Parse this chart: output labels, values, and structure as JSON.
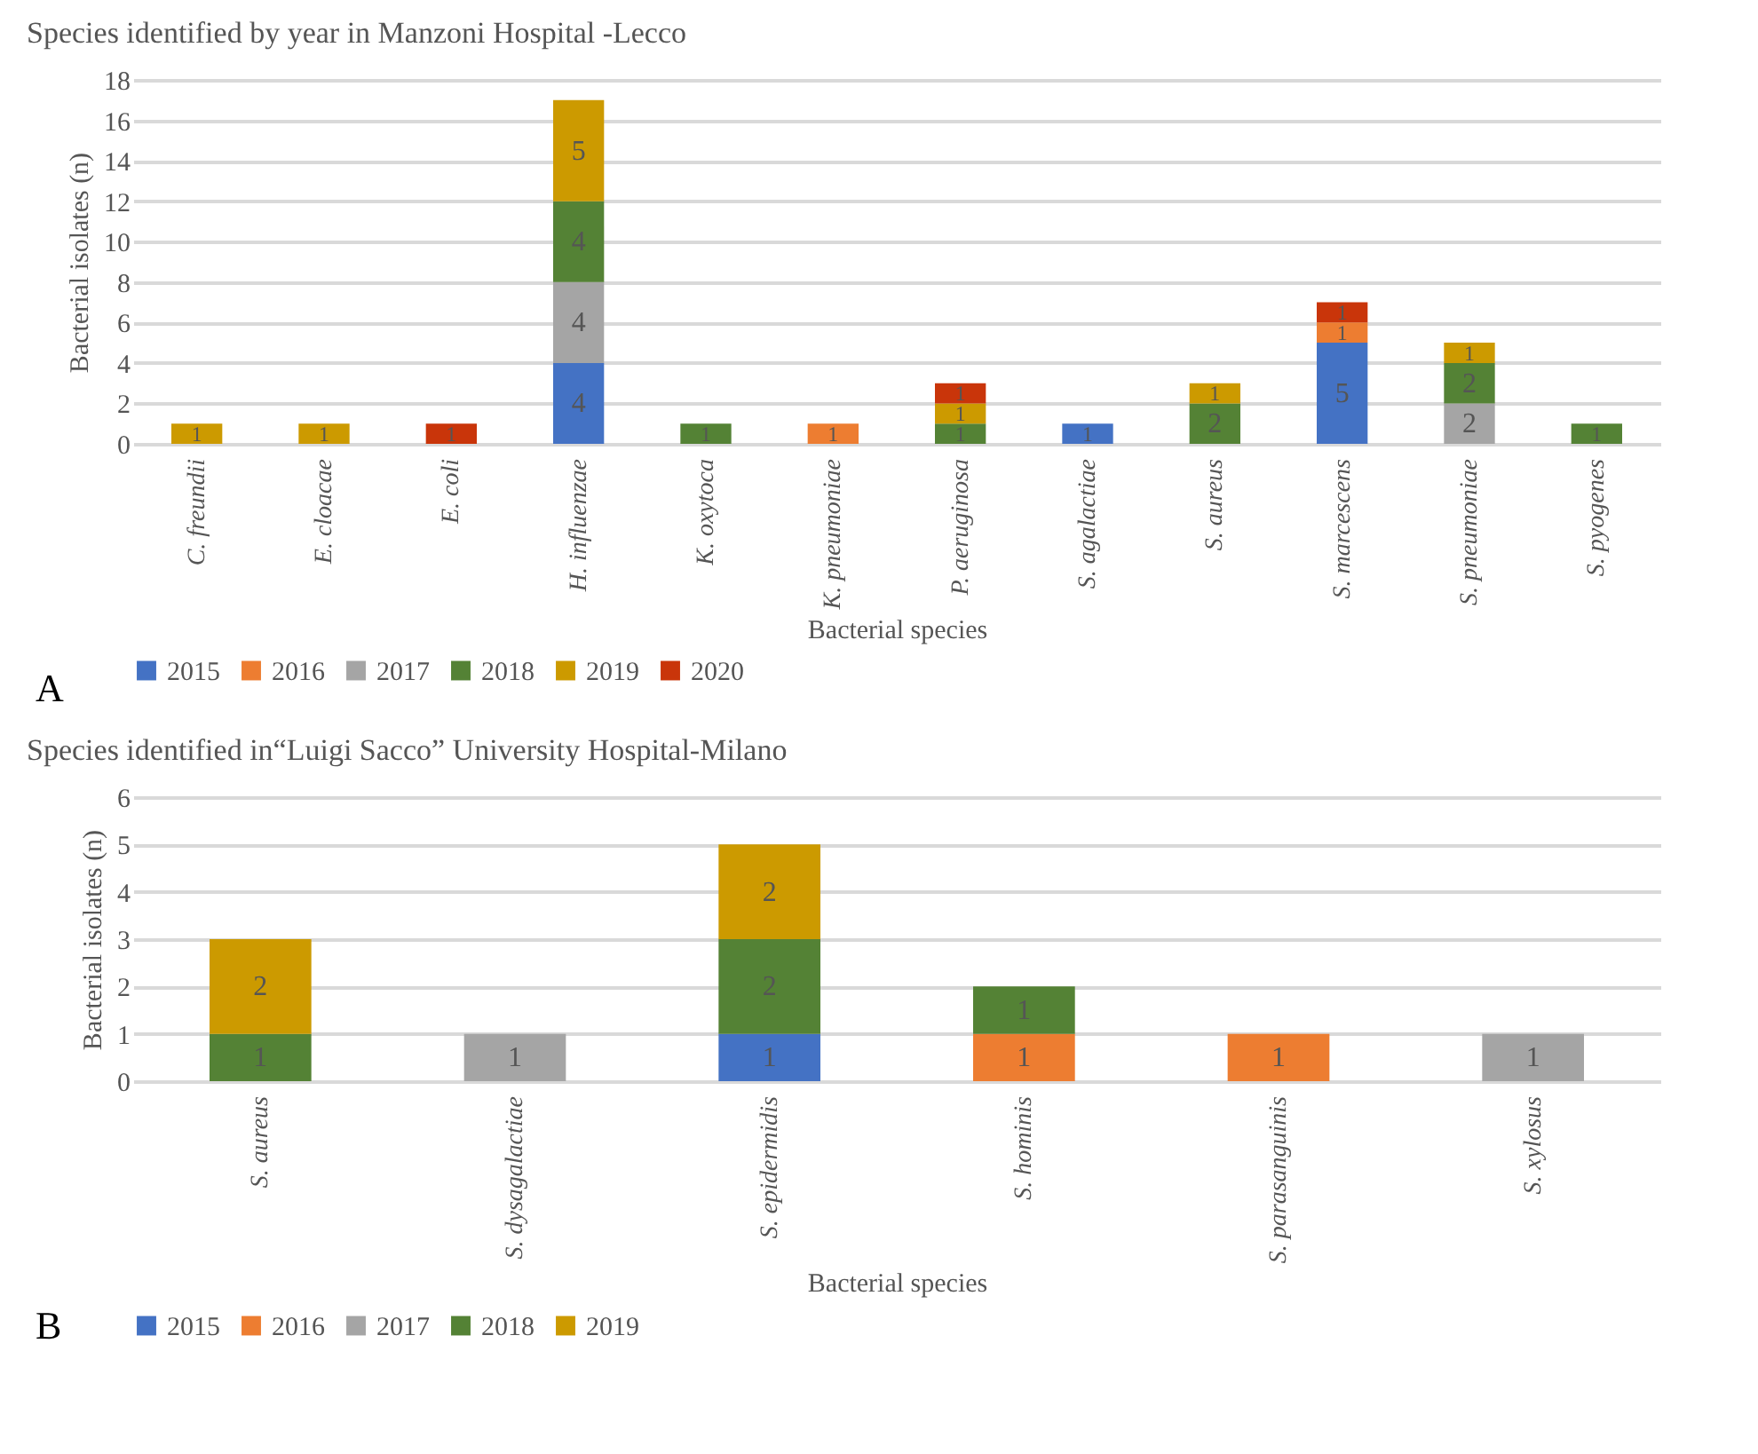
{
  "chart_data": [
    {
      "type": "bar",
      "title": "Species identified by year in Manzoni Hospital -Lecco",
      "xlabel": "Bacterial species",
      "ylabel": "Bacterial isolates (n)",
      "stacked": true,
      "data_labels": true,
      "grid": "y",
      "legend": "bottom",
      "annotations": [
        "A"
      ],
      "categories": [
        "C. freundii",
        "E. cloacae",
        "E. coli",
        "H. influenzae",
        "K. oxytoca",
        "K. pneumoniae",
        "P. aeruginosa",
        "S. agalactiae",
        "S. aureus",
        "S. marcescens",
        "S. pneumoniae",
        "S. pyogenes"
      ],
      "ylim": [
        0,
        18
      ],
      "yticks": [
        0,
        2,
        4,
        6,
        8,
        10,
        12,
        14,
        16,
        18
      ],
      "series": [
        {
          "name": "2015",
          "color": "#4472c4",
          "values": [
            null,
            null,
            null,
            4,
            null,
            null,
            null,
            1,
            null,
            5,
            null,
            null
          ]
        },
        {
          "name": "2016",
          "color": "#ed7d31",
          "values": [
            null,
            null,
            null,
            null,
            null,
            1,
            null,
            null,
            null,
            1,
            null,
            null
          ]
        },
        {
          "name": "2017",
          "color": "#a5a5a5",
          "values": [
            null,
            null,
            null,
            4,
            null,
            null,
            null,
            null,
            null,
            null,
            2,
            null
          ]
        },
        {
          "name": "2018",
          "color": "#548235",
          "values": [
            null,
            null,
            null,
            4,
            1,
            null,
            1,
            null,
            2,
            null,
            2,
            1
          ]
        },
        {
          "name": "2019",
          "color": "#cc9a00",
          "values": [
            1,
            1,
            null,
            5,
            null,
            null,
            1,
            null,
            1,
            null,
            1,
            null
          ]
        },
        {
          "name": "2020",
          "color": "#c9350a",
          "values": [
            null,
            null,
            1,
            null,
            null,
            null,
            1,
            null,
            null,
            1,
            null,
            null
          ]
        }
      ]
    },
    {
      "type": "bar",
      "title": "Species identified in“Luigi Sacco” University Hospital-Milano",
      "xlabel": "Bacterial species",
      "ylabel": "Bacterial isolates (n)",
      "stacked": true,
      "data_labels": true,
      "grid": "y",
      "legend": "bottom",
      "annotations": [
        "B"
      ],
      "categories": [
        "S. aureus",
        "S. dysagalactiae",
        "S. epidermidis",
        "S. hominis",
        "S. parasanguinis",
        "S. xylosus"
      ],
      "ylim": [
        0,
        6
      ],
      "yticks": [
        0,
        1,
        2,
        3,
        4,
        5,
        6
      ],
      "series": [
        {
          "name": "2015",
          "color": "#4472c4",
          "values": [
            null,
            null,
            1,
            null,
            null,
            null
          ]
        },
        {
          "name": "2016",
          "color": "#ed7d31",
          "values": [
            null,
            null,
            null,
            1,
            1,
            null
          ]
        },
        {
          "name": "2017",
          "color": "#a5a5a5",
          "values": [
            null,
            1,
            null,
            null,
            null,
            1
          ]
        },
        {
          "name": "2018",
          "color": "#548235",
          "values": [
            1,
            null,
            2,
            1,
            null,
            null
          ]
        },
        {
          "name": "2019",
          "color": "#cc9a00",
          "values": [
            2,
            null,
            2,
            null,
            null,
            null
          ]
        }
      ]
    }
  ]
}
